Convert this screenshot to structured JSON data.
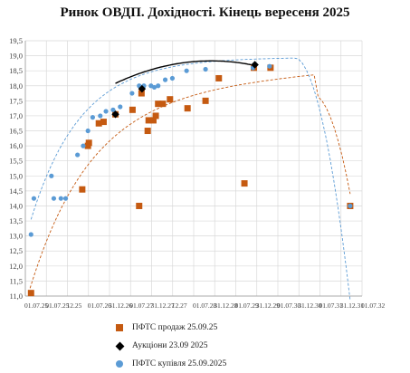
{
  "chart_data": {
    "type": "scatter",
    "title": "Ринок ОВДП. Дохідності.  Кінець вересеня 2025",
    "xlabel": "",
    "ylabel": "",
    "ylim": [
      11.0,
      19.5
    ],
    "xlim": [
      2025.5,
      2032.6
    ],
    "y_ticks": [
      "11,0",
      "11,5",
      "12,0",
      "12,5",
      "13,0",
      "13,5",
      "14,0",
      "14,5",
      "15,0",
      "15,5",
      "16,0",
      "16,5",
      "17,0",
      "17,5",
      "18,0",
      "18,5",
      "19,0",
      "19,5"
    ],
    "x_ticks": [
      "01.07.25",
      "01.07.25",
      "12.25",
      "01.07.26",
      "31.12.26",
      "01.07.27",
      "31.12.27",
      "12.27",
      "01.07.28",
      "31.12.28",
      "01.07.29",
      "31.12.29",
      "01.07.30",
      "31.12.30",
      "01.07.31",
      "31.12.31",
      "01.07.32"
    ],
    "grid": true,
    "legend_position": "bottom",
    "series": [
      {
        "name": "ПФТС продаж 25.09.25",
        "marker": "square",
        "color": "#C55A11",
        "points": [
          [
            2025.62,
            11.1
          ],
          [
            2026.7,
            14.55
          ],
          [
            2026.82,
            16.0
          ],
          [
            2026.84,
            16.1
          ],
          [
            2027.05,
            16.75
          ],
          [
            2027.15,
            16.8
          ],
          [
            2027.4,
            17.05
          ],
          [
            2027.76,
            17.2
          ],
          [
            2027.9,
            14.0
          ],
          [
            2027.95,
            17.75
          ],
          [
            2028.08,
            16.5
          ],
          [
            2028.1,
            16.85
          ],
          [
            2028.2,
            16.85
          ],
          [
            2028.25,
            17.0
          ],
          [
            2028.3,
            17.4
          ],
          [
            2028.4,
            17.4
          ],
          [
            2028.55,
            17.55
          ],
          [
            2028.92,
            17.25
          ],
          [
            2029.3,
            17.5
          ],
          [
            2029.58,
            18.25
          ],
          [
            2030.12,
            14.75
          ],
          [
            2030.32,
            18.6
          ],
          [
            2030.67,
            18.6
          ],
          [
            2032.35,
            14.0
          ]
        ]
      },
      {
        "name": "Аукціони 23.09 2025",
        "marker": "diamond",
        "color": "#000000",
        "points": [
          [
            2027.4,
            17.05
          ],
          [
            2027.96,
            17.9
          ],
          [
            2030.34,
            18.7
          ]
        ]
      },
      {
        "name": "ПФТС купівля 25.09.2025",
        "marker": "circle",
        "color": "#5B9BD5",
        "points": [
          [
            2025.62,
            13.05
          ],
          [
            2025.68,
            14.25
          ],
          [
            2026.05,
            15.0
          ],
          [
            2026.1,
            14.25
          ],
          [
            2026.25,
            14.25
          ],
          [
            2026.35,
            14.25
          ],
          [
            2026.6,
            15.7
          ],
          [
            2026.72,
            16.0
          ],
          [
            2026.82,
            16.5
          ],
          [
            2026.92,
            16.95
          ],
          [
            2027.08,
            17.0
          ],
          [
            2027.2,
            17.15
          ],
          [
            2027.35,
            17.2
          ],
          [
            2027.5,
            17.3
          ],
          [
            2027.75,
            17.75
          ],
          [
            2027.9,
            18.0
          ],
          [
            2027.95,
            17.95
          ],
          [
            2028.0,
            18.0
          ],
          [
            2028.15,
            18.0
          ],
          [
            2028.22,
            17.95
          ],
          [
            2028.3,
            18.0
          ],
          [
            2028.45,
            18.2
          ],
          [
            2028.6,
            18.25
          ],
          [
            2028.9,
            18.5
          ],
          [
            2029.3,
            18.55
          ],
          [
            2030.3,
            18.6
          ],
          [
            2030.65,
            18.65
          ],
          [
            2032.35,
            14.0
          ]
        ]
      }
    ],
    "trendlines": [
      {
        "series": "ПФТС продаж 25.09.25",
        "style": "dashed",
        "color": "#C55A11"
      },
      {
        "series": "Аукціони 23.09 2025",
        "style": "solid",
        "color": "#000000"
      },
      {
        "series": "ПФТС купівля 25.09.2025",
        "style": "dashed",
        "color": "#5B9BD5"
      }
    ]
  }
}
